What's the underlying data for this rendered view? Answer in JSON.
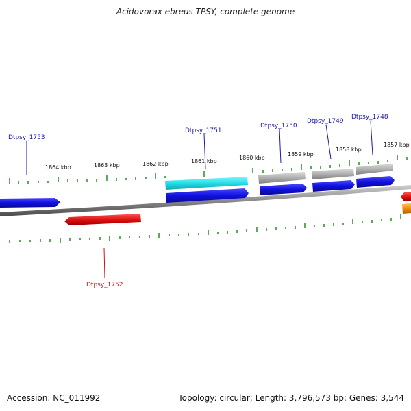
{
  "title": "Acidovorax ebreus TPSY, complete genome",
  "footer": {
    "accession": "Accession: NC_011992",
    "stats": "Topology: circular; Length: 3,796,573 bp; Genes: 3,544"
  },
  "colors": {
    "backbone": "#8a8a8a",
    "tick": "#2a8a2a",
    "plus_label": "#1a1aaa",
    "minus_label": "#cc1111",
    "cds_blue": "#1a1ae0",
    "rna_cyan": "#22dde8",
    "pseudo_gray": "#b0b0b0",
    "red": "#e01010",
    "orange": "#f08a00"
  },
  "kbp_ticks": [
    "1864 kbp",
    "1863 kbp",
    "1862 kbp",
    "1861 kbp",
    "1860 kbp",
    "1859 kbp",
    "1858 kbp",
    "1857 kbp"
  ],
  "gene_labels": {
    "dtpsy_1753": "Dtpsy_1753",
    "dtpsy_1751": "Dtpsy_1751",
    "dtpsy_1750": "Dtpsy_1750",
    "dtpsy_1749": "Dtpsy_1749",
    "dtpsy_1748": "Dtpsy_1748",
    "dtpsy_1752": "Dtpsy_1752"
  }
}
